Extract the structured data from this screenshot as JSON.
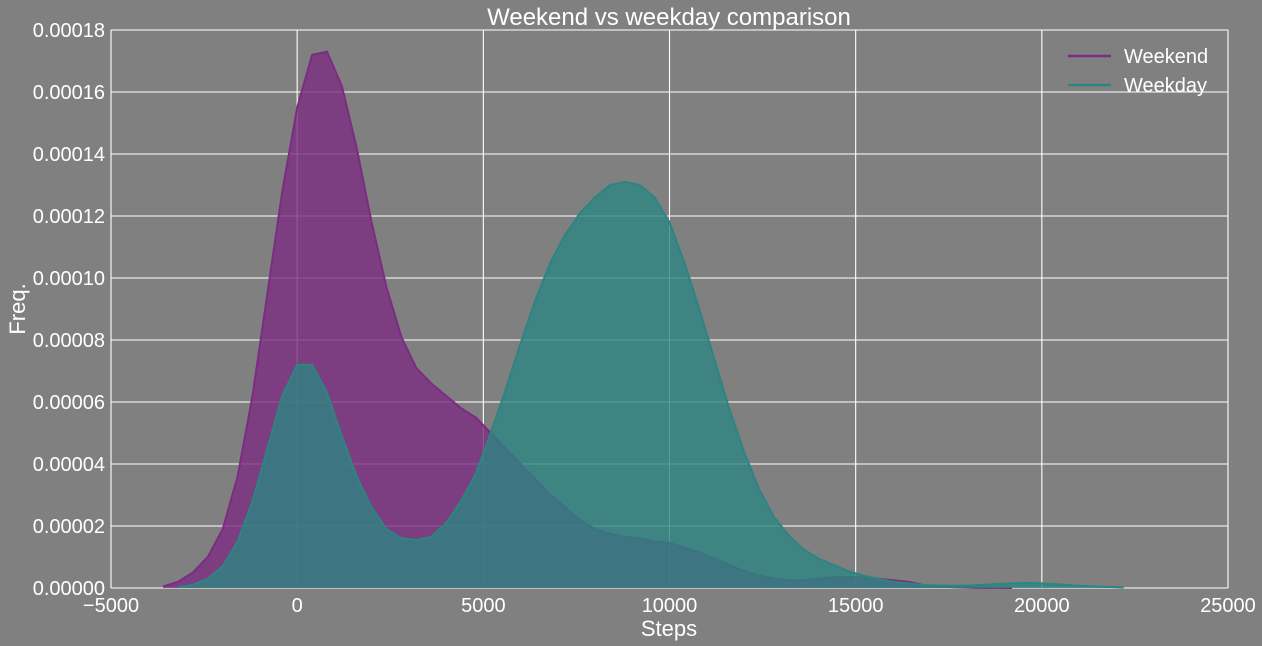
{
  "chart_data": {
    "type": "area",
    "title": "Weekend vs weekday comparison",
    "xlabel": "Steps",
    "ylabel": "Freq.",
    "xlim": [
      -5000,
      25000
    ],
    "ylim": [
      0,
      0.00018
    ],
    "xticks": [
      -5000,
      0,
      5000,
      10000,
      15000,
      20000,
      25000
    ],
    "xtick_labels": [
      "−5000",
      "0",
      "5000",
      "10000",
      "15000",
      "20000",
      "25000"
    ],
    "yticks": [
      0,
      2e-05,
      4e-05,
      6e-05,
      8e-05,
      0.0001,
      0.00012,
      0.00014,
      0.00016,
      0.00018
    ],
    "ytick_labels": [
      "0.00000",
      "0.00002",
      "0.00004",
      "0.00006",
      "0.00008",
      "0.00010",
      "0.00012",
      "0.00014",
      "0.00016",
      "0.00018"
    ],
    "grid": true,
    "legend_position": "top-right",
    "series": [
      {
        "name": "Weekend",
        "color": "#7b2d80",
        "fill_opacity": 0.8,
        "x": [
          -3600,
          -3200,
          -2800,
          -2400,
          -2000,
          -1600,
          -1200,
          -800,
          -400,
          0,
          400,
          800,
          1200,
          1600,
          2000,
          2400,
          2800,
          3200,
          3600,
          4000,
          4400,
          4800,
          5200,
          5600,
          6000,
          6400,
          6800,
          7200,
          7600,
          8000,
          8400,
          8800,
          9200,
          9600,
          10000,
          10400,
          10800,
          11200,
          11600,
          12000,
          12400,
          12800,
          13200,
          13600,
          14000,
          14400,
          14800,
          15200,
          15600,
          16000,
          16400,
          16800,
          17200,
          17600,
          18000,
          18400,
          18800,
          19200
        ],
        "y": [
          5e-07,
          2e-06,
          5e-06,
          1e-05,
          1.9e-05,
          3.6e-05,
          6.2e-05,
          9.5e-05,
          0.000128,
          0.000155,
          0.000172,
          0.000173,
          0.000162,
          0.000142,
          0.000118,
          9.7e-05,
          8.1e-05,
          7.1e-05,
          6.6e-05,
          6.2e-05,
          5.8e-05,
          5.5e-05,
          5e-05,
          4.5e-05,
          4e-05,
          3.5e-05,
          3e-05,
          2.6e-05,
          2.2e-05,
          1.9e-05,
          1.75e-05,
          1.65e-05,
          1.6e-05,
          1.5e-05,
          1.45e-05,
          1.3e-05,
          1.15e-05,
          9.5e-06,
          7.5e-06,
          5.5e-06,
          4e-06,
          3e-06,
          2.5e-06,
          2.5e-06,
          3e-06,
          3.5e-06,
          3.5e-06,
          3.5e-06,
          3e-06,
          2.5e-06,
          2e-06,
          1e-06,
          5e-07,
          3e-07,
          2e-07,
          1e-07,
          5e-08,
          0
        ]
      },
      {
        "name": "Weekday",
        "color": "#2d8582",
        "fill_opacity": 0.8,
        "x": [
          -3200,
          -2800,
          -2400,
          -2000,
          -1600,
          -1200,
          -800,
          -400,
          0,
          400,
          800,
          1200,
          1600,
          2000,
          2400,
          2800,
          3200,
          3600,
          4000,
          4400,
          4800,
          5200,
          5600,
          6000,
          6400,
          6800,
          7200,
          7600,
          8000,
          8400,
          8800,
          9200,
          9600,
          10000,
          10400,
          10800,
          11200,
          11600,
          12000,
          12400,
          12800,
          13200,
          13600,
          14000,
          14400,
          14800,
          15200,
          15600,
          16000,
          16400,
          16800,
          17200,
          17600,
          18000,
          18400,
          18800,
          19200,
          19600,
          20000,
          20400,
          20800,
          21200,
          21600,
          22000,
          22200
        ],
        "y": [
          3e-07,
          1e-06,
          3e-06,
          7e-06,
          1.5e-05,
          2.8e-05,
          4.5e-05,
          6.2e-05,
          7.2e-05,
          7.2e-05,
          6.3e-05,
          4.9e-05,
          3.6e-05,
          2.6e-05,
          1.9e-05,
          1.6e-05,
          1.55e-05,
          1.65e-05,
          2.1e-05,
          2.8e-05,
          3.7e-05,
          5e-05,
          6.4e-05,
          7.9e-05,
          9.3e-05,
          0.000105,
          0.000114,
          0.000121,
          0.000126,
          0.00013,
          0.000131,
          0.00013,
          0.000126,
          0.000118,
          0.000105,
          9e-05,
          7.4e-05,
          5.8e-05,
          4.4e-05,
          3.2e-05,
          2.3e-05,
          1.7e-05,
          1.25e-05,
          9.5e-06,
          7.5e-06,
          5.5e-06,
          4e-06,
          3e-06,
          2e-06,
          1.5e-06,
          1e-06,
          8e-07,
          7e-07,
          8e-07,
          1e-06,
          1.3e-06,
          1.5e-06,
          1.6e-06,
          1.5e-06,
          1.2e-06,
          9e-07,
          6e-07,
          4e-07,
          3e-07,
          2e-07
        ]
      }
    ]
  }
}
